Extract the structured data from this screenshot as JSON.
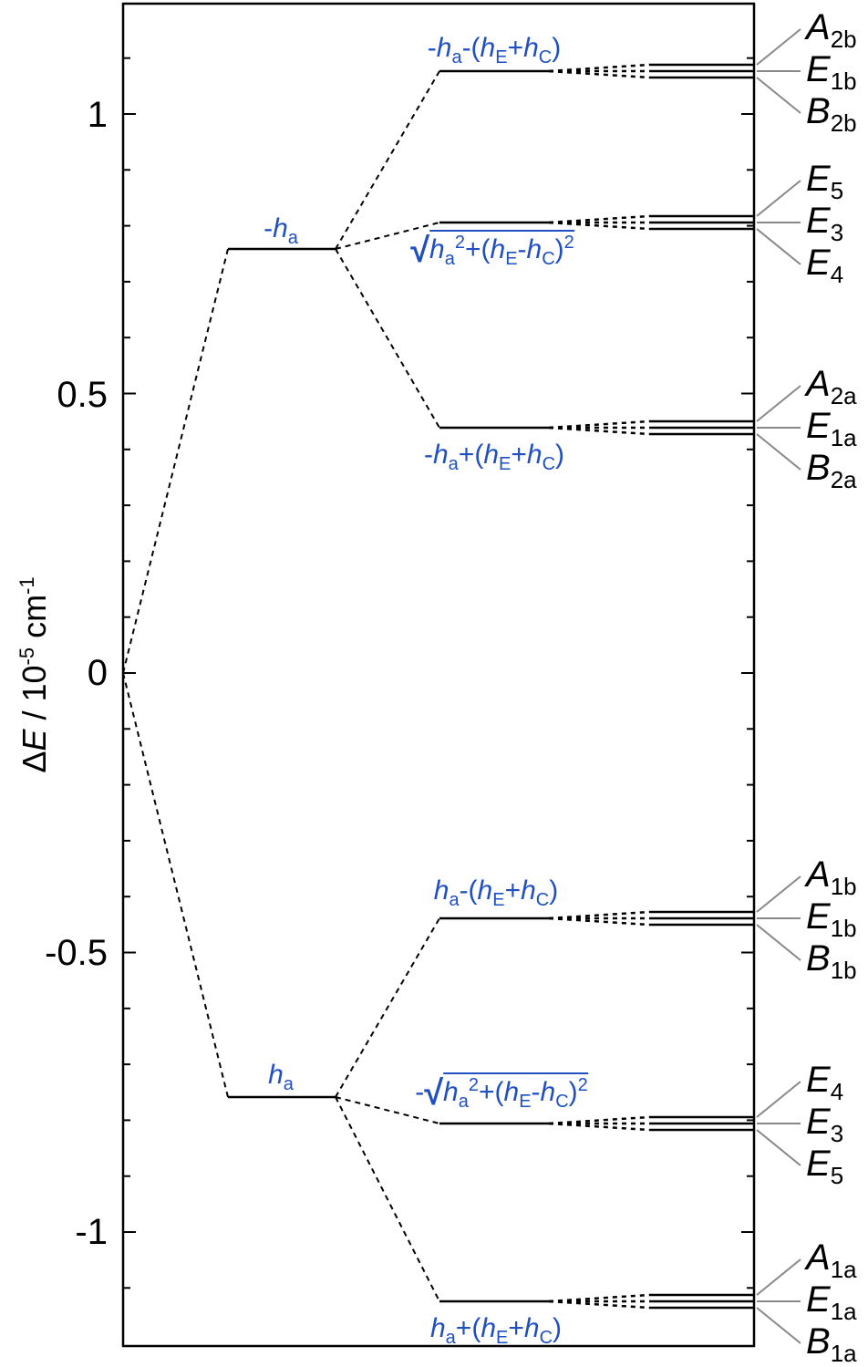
{
  "axis": {
    "ylabel_delta": "Δ",
    "ylabel_var": "E",
    "ylabel_unit_pre": " / 10",
    "ylabel_exp1": "-5",
    "ylabel_unit_mid": " cm",
    "ylabel_exp2": "-1",
    "ticks": [
      "1",
      "0.5",
      "0",
      "-0.5",
      "-1"
    ]
  },
  "levels": {
    "upper_main": {
      "pre": "-",
      "var": "h",
      "sub": "a"
    },
    "lower_main": {
      "pre": "",
      "var": "h",
      "sub": "a"
    },
    "u_top": "-ha-(hE+hC)",
    "u_mid": "√(ha²+(hE-hC)²)",
    "u_bot": "-ha+(hE+hC)",
    "l_top": "ha-(hE+hC)",
    "l_mid": "-√(ha²+(hE-hC)²)",
    "l_bot": "ha+(hE+hC)"
  },
  "symmetry": {
    "g1": [
      {
        "s": "A",
        "sub": "2b"
      },
      {
        "s": "E",
        "sub": "1b"
      },
      {
        "s": "B",
        "sub": "2b"
      }
    ],
    "g2": [
      {
        "s": "E",
        "sub": "5"
      },
      {
        "s": "E",
        "sub": "3"
      },
      {
        "s": "E",
        "sub": "4"
      }
    ],
    "g3": [
      {
        "s": "A",
        "sub": "2a"
      },
      {
        "s": "E",
        "sub": "1a"
      },
      {
        "s": "B",
        "sub": "2a"
      }
    ],
    "g4": [
      {
        "s": "A",
        "sub": "1b"
      },
      {
        "s": "E",
        "sub": "1b"
      },
      {
        "s": "B",
        "sub": "1b"
      }
    ],
    "g5": [
      {
        "s": "E",
        "sub": "4"
      },
      {
        "s": "E",
        "sub": "3"
      },
      {
        "s": "E",
        "sub": "5"
      }
    ],
    "g6": [
      {
        "s": "A",
        "sub": "1a"
      },
      {
        "s": "E",
        "sub": "1a"
      },
      {
        "s": "B",
        "sub": "1a"
      }
    ]
  },
  "colors": {
    "label_blue": "#1f4fc2",
    "line": "#000000",
    "leader": "#888888"
  }
}
